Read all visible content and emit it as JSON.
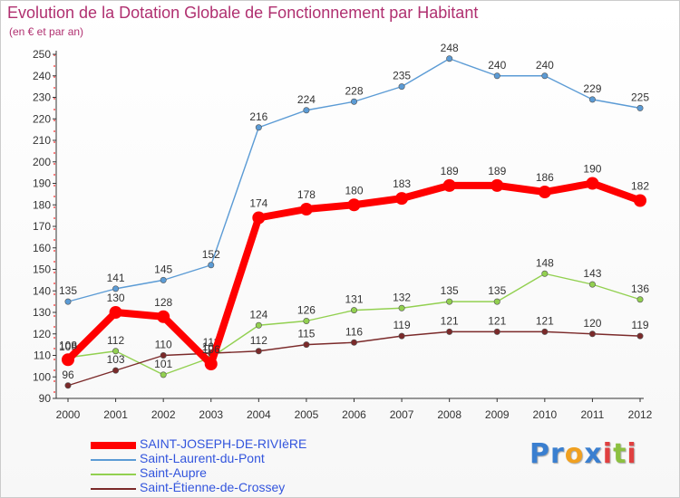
{
  "chart_data": {
    "type": "line",
    "title": "Evolution de la Dotation Globale de Fonctionnement par Habitant",
    "subtitle": "(en € et par an)",
    "x": [
      "2000",
      "2001",
      "2002",
      "2003",
      "2004",
      "2005",
      "2006",
      "2007",
      "2008",
      "2009",
      "2010",
      "2011",
      "2012"
    ],
    "ylim": [
      90,
      250
    ],
    "yticks": [
      90,
      100,
      110,
      120,
      130,
      140,
      150,
      160,
      170,
      180,
      190,
      200,
      210,
      220,
      230,
      240,
      250
    ],
    "grid": false,
    "legend_position": "bottom-left",
    "series": [
      {
        "name": "SAINT-JOSEPH-DE-RIVIèRE",
        "color": "#ff0000",
        "values": [
          108,
          130,
          128,
          106,
          174,
          178,
          180,
          183,
          189,
          189,
          186,
          190,
          182
        ],
        "labels": [
          "108",
          "130",
          "128",
          "106",
          "174",
          "178",
          "180",
          "183",
          "189",
          "189",
          "186",
          "190",
          "182"
        ]
      },
      {
        "name": "Saint-Laurent-du-Pont",
        "color": "#5b9bd5",
        "values": [
          135,
          141,
          145,
          152,
          216,
          224,
          228,
          235,
          248,
          240,
          240,
          229,
          225
        ],
        "labels": [
          "135",
          "141",
          "145",
          "152",
          "216",
          "224",
          "228",
          "235",
          "248",
          "240",
          "240",
          "229",
          "225"
        ]
      },
      {
        "name": "Saint-Aupre",
        "color": "#92d050",
        "values": [
          109,
          112,
          101,
          109,
          124,
          126,
          131,
          132,
          135,
          135,
          148,
          143,
          136
        ],
        "labels": [
          "109",
          "112",
          "101",
          "109",
          "124",
          "126",
          "131",
          "132",
          "135",
          "135",
          "148",
          "143",
          "136"
        ]
      },
      {
        "name": "Saint-Étienne-de-Crossey",
        "color": "#7b2a2a",
        "values": [
          96,
          103,
          110,
          111,
          112,
          115,
          116,
          119,
          121,
          121,
          121,
          120,
          119
        ],
        "labels": [
          "96",
          "103",
          "110",
          "111",
          "112",
          "115",
          "116",
          "119",
          "121",
          "121",
          "121",
          "120",
          "119"
        ]
      }
    ]
  },
  "logo": {
    "p1": "Pr",
    "p2": "o",
    "p3": "x",
    "p4": "i",
    "p5": "t",
    "p6": "i"
  },
  "colors": {
    "title": "#b03070",
    "legend_text": "#3355dd",
    "axis": "#333333"
  }
}
